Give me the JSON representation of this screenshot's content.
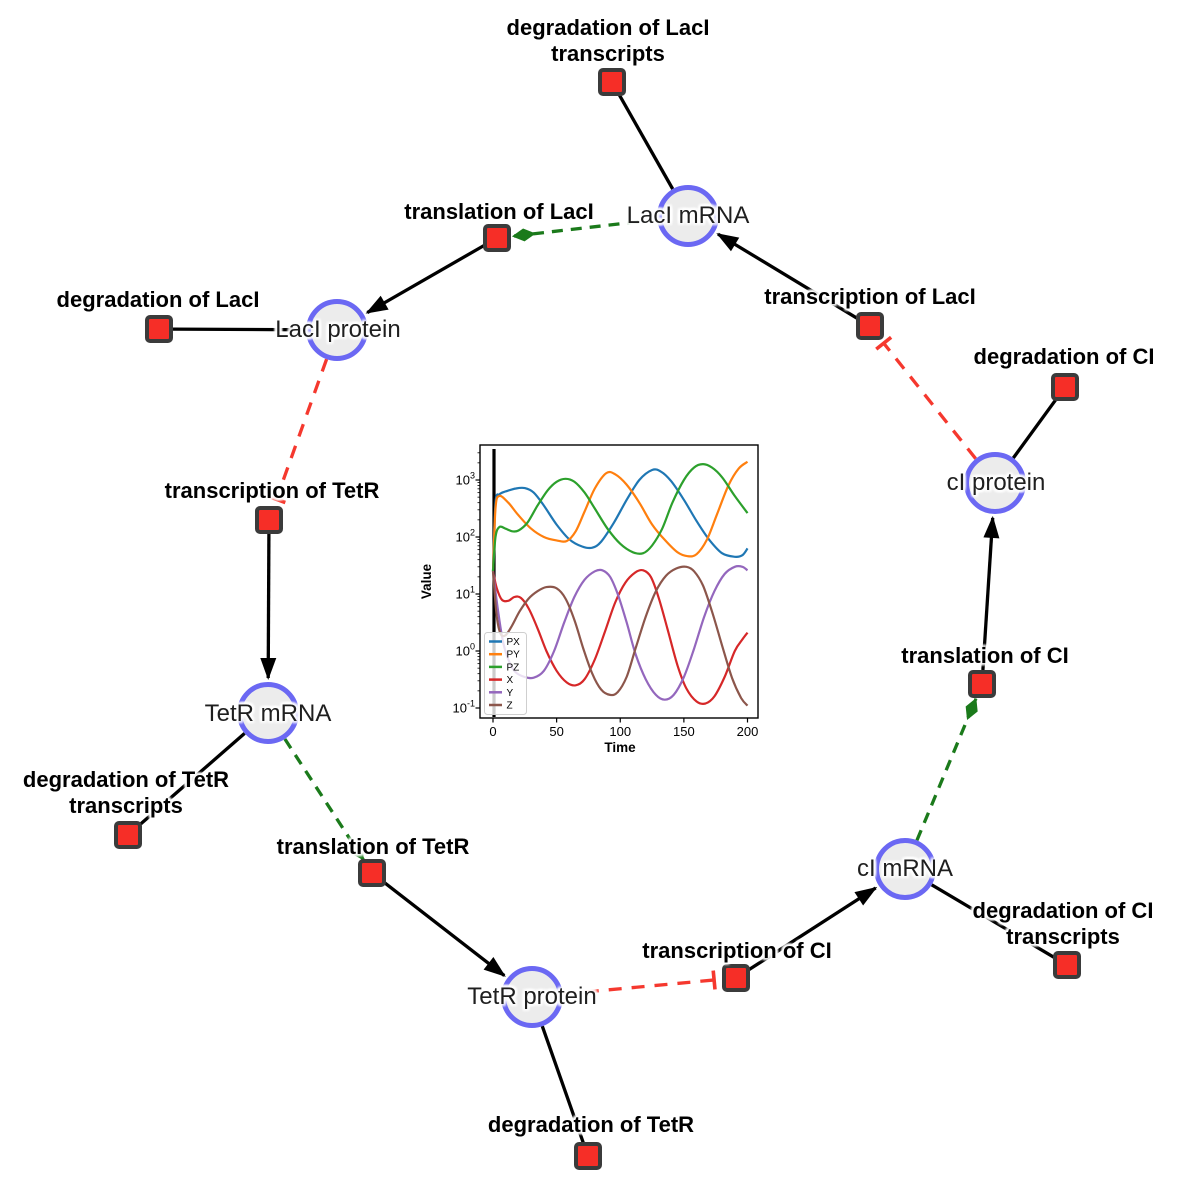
{
  "figure": {
    "background": "#ffffff"
  },
  "diagram": {
    "node_colors": {
      "species_fill": "#ececec",
      "species_border": "#6b68f3",
      "reaction_fill": "#f62e27",
      "reaction_border": "#3b3b3b"
    },
    "edge_colors": {
      "production": "#000000",
      "consumption": "#000000",
      "modifier": "#1b7a1b",
      "inhibition": "#f5382e"
    },
    "nodes": [
      {
        "id": "laci_mrna",
        "kind": "species",
        "label": "LacI mRNA"
      },
      {
        "id": "laci_protein",
        "kind": "species",
        "label": "LacI protein"
      },
      {
        "id": "tetr_mrna",
        "kind": "species",
        "label": "TetR mRNA"
      },
      {
        "id": "tetr_protein",
        "kind": "species",
        "label": "TetR protein"
      },
      {
        "id": "ci_mrna",
        "kind": "species",
        "label": "cI mRNA"
      },
      {
        "id": "ci_protein",
        "kind": "species",
        "label": "cI protein"
      },
      {
        "id": "deg_laci_tx",
        "kind": "reaction",
        "label": "degradation of LacI transcripts"
      },
      {
        "id": "translation_laci",
        "kind": "reaction",
        "label": "translation of LacI"
      },
      {
        "id": "transcription_laci",
        "kind": "reaction",
        "label": "transcription of LacI"
      },
      {
        "id": "deg_laci",
        "kind": "reaction",
        "label": "degradation of LacI"
      },
      {
        "id": "transcription_tetr",
        "kind": "reaction",
        "label": "transcription of TetR"
      },
      {
        "id": "deg_tetr_tx",
        "kind": "reaction",
        "label": "degradation of TetR transcripts"
      },
      {
        "id": "translation_tetr",
        "kind": "reaction",
        "label": "translation of TetR"
      },
      {
        "id": "deg_tetr",
        "kind": "reaction",
        "label": "degradation of TetR"
      },
      {
        "id": "transcription_ci",
        "kind": "reaction",
        "label": "transcription of CI"
      },
      {
        "id": "deg_ci_tx",
        "kind": "reaction",
        "label": "degradation of CI transcripts"
      },
      {
        "id": "translation_ci",
        "kind": "reaction",
        "label": "translation of CI"
      },
      {
        "id": "deg_ci",
        "kind": "reaction",
        "label": "degradation of CI"
      }
    ],
    "edges": [
      {
        "from": "laci_mrna",
        "to": "deg_laci_tx",
        "type": "consumption"
      },
      {
        "from": "laci_mrna",
        "to": "translation_laci",
        "type": "modifier"
      },
      {
        "from": "translation_laci",
        "to": "laci_protein",
        "type": "production"
      },
      {
        "from": "transcription_laci",
        "to": "laci_mrna",
        "type": "production"
      },
      {
        "from": "ci_protein",
        "to": "transcription_laci",
        "type": "inhibition"
      },
      {
        "from": "laci_protein",
        "to": "deg_laci",
        "type": "consumption"
      },
      {
        "from": "laci_protein",
        "to": "transcription_tetr",
        "type": "inhibition"
      },
      {
        "from": "transcription_tetr",
        "to": "tetr_mrna",
        "type": "production"
      },
      {
        "from": "tetr_mrna",
        "to": "deg_tetr_tx",
        "type": "consumption"
      },
      {
        "from": "tetr_mrna",
        "to": "translation_tetr",
        "type": "modifier"
      },
      {
        "from": "translation_tetr",
        "to": "tetr_protein",
        "type": "production"
      },
      {
        "from": "tetr_protein",
        "to": "deg_tetr",
        "type": "consumption"
      },
      {
        "from": "tetr_protein",
        "to": "transcription_ci",
        "type": "inhibition"
      },
      {
        "from": "transcription_ci",
        "to": "ci_mrna",
        "type": "production"
      },
      {
        "from": "ci_mrna",
        "to": "deg_ci_tx",
        "type": "consumption"
      },
      {
        "from": "ci_mrna",
        "to": "translation_ci",
        "type": "modifier"
      },
      {
        "from": "translation_ci",
        "to": "ci_protein",
        "type": "production"
      },
      {
        "from": "ci_protein",
        "to": "deg_ci",
        "type": "consumption"
      }
    ]
  },
  "chart_data": {
    "type": "line",
    "title": "",
    "xlabel": "Time",
    "ylabel": "Value",
    "x_ticks": [
      0,
      50,
      100,
      150,
      200
    ],
    "y_tick_exponents": [
      -1,
      0,
      1,
      2,
      3
    ],
    "y_scale": "log",
    "xlim": [
      -10,
      208
    ],
    "ylim": [
      0.067,
      4000
    ],
    "t0_marker_x": 0,
    "grid": false,
    "legend_position": "lower left",
    "series": [
      {
        "name": "PX",
        "color": "#1f77b4",
        "points": [
          [
            0,
            25
          ],
          [
            2,
            400
          ],
          [
            5,
            560
          ],
          [
            10,
            630
          ],
          [
            18,
            710
          ],
          [
            25,
            720
          ],
          [
            32,
            600
          ],
          [
            40,
            355
          ],
          [
            50,
            165
          ],
          [
            60,
            91
          ],
          [
            70,
            68
          ],
          [
            78,
            65
          ],
          [
            85,
            83
          ],
          [
            95,
            178
          ],
          [
            105,
            447
          ],
          [
            115,
            1000
          ],
          [
            125,
            1500
          ],
          [
            132,
            1400
          ],
          [
            140,
            955
          ],
          [
            150,
            450
          ],
          [
            160,
            190
          ],
          [
            170,
            89
          ],
          [
            180,
            52
          ],
          [
            190,
            45
          ],
          [
            196,
            48
          ],
          [
            200,
            63
          ]
        ]
      },
      {
        "name": "PY",
        "color": "#ff7f0e",
        "points": [
          [
            0,
            25
          ],
          [
            2,
            320
          ],
          [
            5,
            525
          ],
          [
            12,
            400
          ],
          [
            20,
            240
          ],
          [
            30,
            140
          ],
          [
            40,
            100
          ],
          [
            50,
            87
          ],
          [
            58,
            85
          ],
          [
            65,
            126
          ],
          [
            72,
            280
          ],
          [
            80,
            710
          ],
          [
            89,
            1320
          ],
          [
            96,
            1260
          ],
          [
            105,
            830
          ],
          [
            115,
            400
          ],
          [
            125,
            166
          ],
          [
            135,
            89
          ],
          [
            145,
            54
          ],
          [
            153,
            46
          ],
          [
            160,
            50
          ],
          [
            168,
            89
          ],
          [
            176,
            250
          ],
          [
            185,
            800
          ],
          [
            193,
            1580
          ],
          [
            200,
            2090
          ]
        ]
      },
      {
        "name": "PZ",
        "color": "#2ca02c",
        "points": [
          [
            0,
            25
          ],
          [
            2,
            100
          ],
          [
            5,
            150
          ],
          [
            10,
            140
          ],
          [
            15,
            126
          ],
          [
            20,
            130
          ],
          [
            27,
            178
          ],
          [
            35,
            355
          ],
          [
            43,
            660
          ],
          [
            50,
            930
          ],
          [
            57,
            1050
          ],
          [
            64,
            930
          ],
          [
            72,
            600
          ],
          [
            80,
            316
          ],
          [
            90,
            140
          ],
          [
            100,
            76
          ],
          [
            110,
            54
          ],
          [
            118,
            52
          ],
          [
            125,
            71
          ],
          [
            133,
            140
          ],
          [
            141,
            400
          ],
          [
            150,
            1000
          ],
          [
            158,
            1660
          ],
          [
            165,
            1900
          ],
          [
            172,
            1660
          ],
          [
            180,
            1120
          ],
          [
            190,
            525
          ],
          [
            200,
            263
          ]
        ]
      },
      {
        "name": "X",
        "color": "#d62728",
        "points": [
          [
            0,
            25
          ],
          [
            3,
            12.6
          ],
          [
            7,
            7.9
          ],
          [
            12,
            7.6
          ],
          [
            17,
            8.9
          ],
          [
            22,
            8.5
          ],
          [
            28,
            5.6
          ],
          [
            35,
            2.5
          ],
          [
            42,
            1.0
          ],
          [
            50,
            0.45
          ],
          [
            58,
            0.28
          ],
          [
            65,
            0.25
          ],
          [
            72,
            0.32
          ],
          [
            80,
            0.71
          ],
          [
            88,
            2.2
          ],
          [
            96,
            7.1
          ],
          [
            104,
            15.8
          ],
          [
            112,
            24
          ],
          [
            118,
            26
          ],
          [
            124,
            20
          ],
          [
            130,
            8.9
          ],
          [
            137,
            2.5
          ],
          [
            145,
            0.56
          ],
          [
            152,
            0.22
          ],
          [
            160,
            0.13
          ],
          [
            167,
            0.12
          ],
          [
            174,
            0.16
          ],
          [
            182,
            0.35
          ],
          [
            190,
            1.0
          ],
          [
            196,
            1.6
          ],
          [
            200,
            2.1
          ]
        ]
      },
      {
        "name": "Y",
        "color": "#9467bd",
        "points": [
          [
            0,
            25
          ],
          [
            4,
            5.0
          ],
          [
            8,
            1.4
          ],
          [
            13,
            0.63
          ],
          [
            18,
            0.42
          ],
          [
            25,
            0.35
          ],
          [
            32,
            0.34
          ],
          [
            40,
            0.45
          ],
          [
            48,
            1.0
          ],
          [
            56,
            3.2
          ],
          [
            64,
            8.9
          ],
          [
            72,
            17.8
          ],
          [
            80,
            25
          ],
          [
            86,
            26
          ],
          [
            92,
            20
          ],
          [
            98,
            10
          ],
          [
            105,
            3.2
          ],
          [
            112,
            0.89
          ],
          [
            120,
            0.32
          ],
          [
            128,
            0.17
          ],
          [
            135,
            0.14
          ],
          [
            142,
            0.17
          ],
          [
            150,
            0.35
          ],
          [
            158,
            1.1
          ],
          [
            166,
            4.0
          ],
          [
            174,
            11.2
          ],
          [
            182,
            22.4
          ],
          [
            190,
            30
          ],
          [
            196,
            30
          ],
          [
            200,
            26
          ]
        ]
      },
      {
        "name": "Z",
        "color": "#8c564b",
        "points": [
          [
            0,
            25
          ],
          [
            3,
            4.0
          ],
          [
            6,
            2.0
          ],
          [
            10,
            1.9
          ],
          [
            15,
            2.8
          ],
          [
            21,
            5.0
          ],
          [
            28,
            8.3
          ],
          [
            35,
            11.2
          ],
          [
            42,
            13.2
          ],
          [
            50,
            12.6
          ],
          [
            57,
            8.3
          ],
          [
            64,
            3.5
          ],
          [
            71,
            1.1
          ],
          [
            78,
            0.4
          ],
          [
            85,
            0.21
          ],
          [
            92,
            0.17
          ],
          [
            98,
            0.19
          ],
          [
            105,
            0.35
          ],
          [
            112,
            1.1
          ],
          [
            120,
            4.0
          ],
          [
            128,
            11.2
          ],
          [
            136,
            21
          ],
          [
            144,
            28
          ],
          [
            152,
            30
          ],
          [
            158,
            25
          ],
          [
            165,
            14.1
          ],
          [
            172,
            5.0
          ],
          [
            180,
            1.26
          ],
          [
            188,
            0.33
          ],
          [
            195,
            0.15
          ],
          [
            200,
            0.11
          ]
        ]
      }
    ]
  }
}
